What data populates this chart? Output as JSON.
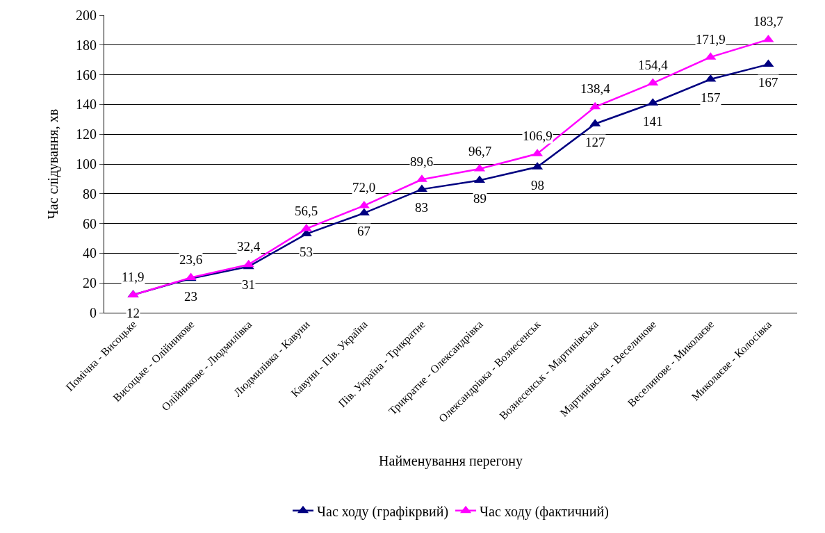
{
  "chart_data": {
    "type": "line",
    "xlabel": "Найменування перегону",
    "ylabel": "Час слідування, хв",
    "categories": [
      "Помічна - Висоцьке",
      "Висоцьке - Олійникове",
      "Олійникове - Людмилівка",
      "Людмилівка - Кавуни",
      "Кавуни - Пів. Україна",
      "Пів. Україна - Трикратне",
      "Трикратне - Олександрівка",
      "Олександрівка - Вознесенськ",
      "Вознесенськ - Мартинівська",
      "Мартинівська - Веселинове",
      "Веселинове - Миколаєве",
      "Миколаєве - Колосівка"
    ],
    "series": [
      {
        "name": "Час ходу (графікрвий)",
        "color": "#000080",
        "values": [
          12,
          23,
          31,
          53,
          67,
          83,
          89,
          98,
          127,
          141,
          157,
          167
        ],
        "value_labels": [
          "12",
          "23",
          "31",
          "53",
          "67",
          "83",
          "89",
          "98",
          "127",
          "141",
          "157",
          "167"
        ]
      },
      {
        "name": "Час ходу (фактичний)",
        "color": "#ff00ff",
        "values": [
          11.9,
          23.6,
          32.4,
          56.5,
          72.0,
          89.6,
          96.7,
          106.9,
          138.4,
          154.4,
          171.9,
          183.7
        ],
        "value_labels": [
          "11,9",
          "23,6",
          "32,4",
          "56,5",
          "72,0",
          "89,6",
          "96,7",
          "106,9",
          "138,4",
          "154,4",
          "171,9",
          "183,7"
        ]
      }
    ],
    "ylim": [
      0,
      200
    ],
    "yticks": [
      0,
      20,
      40,
      60,
      80,
      100,
      120,
      140,
      160,
      180,
      200
    ],
    "grid": "y",
    "legend": "bottom",
    "marker": "triangle",
    "line_style": "solid"
  }
}
